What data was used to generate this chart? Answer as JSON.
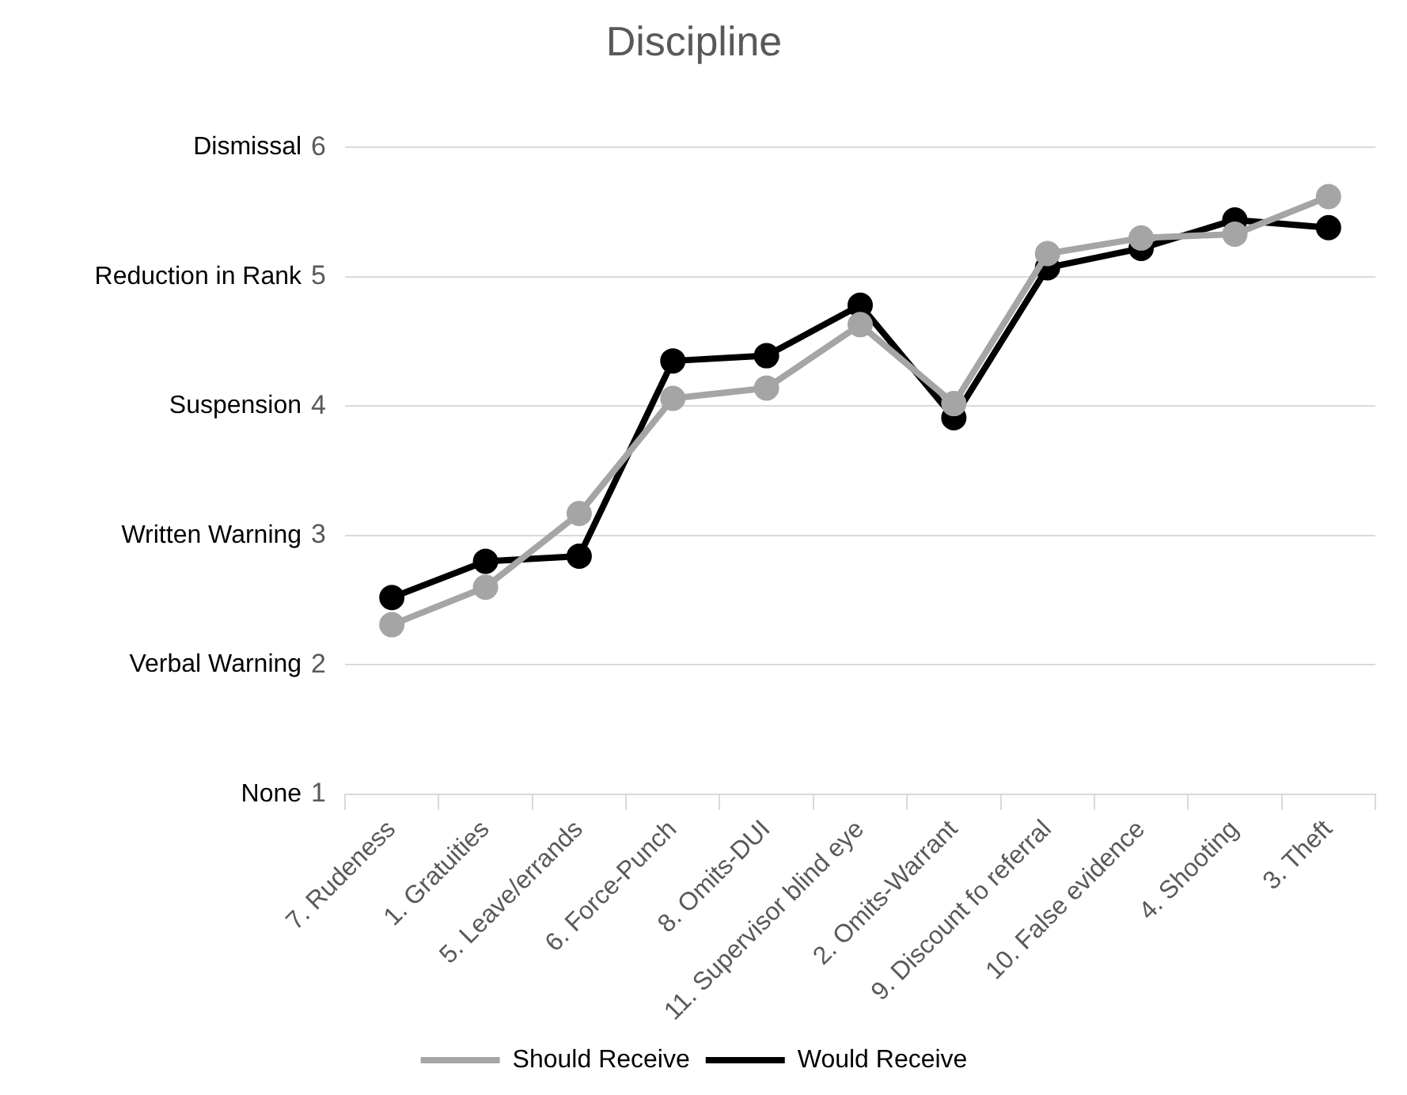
{
  "chart_data": {
    "type": "line",
    "title": "Discipline",
    "categories": [
      "7. Rudeness",
      "1. Gratuities",
      "5. Leave/errands",
      "6. Force-Punch",
      "8. Omits-DUI",
      "11. Supervisor blind eye",
      "2. Omits-Warrant",
      "9. Discount fo referral",
      "10. False evidence",
      "4. Shooting",
      "3. Theft"
    ],
    "series": [
      {
        "name": "Should Receive",
        "color": "#a5a5a5",
        "values": [
          2.31,
          2.6,
          3.17,
          4.06,
          4.14,
          4.63,
          4.02,
          5.18,
          5.3,
          5.33,
          5.62
        ]
      },
      {
        "name": "Would Receive",
        "color": "#000000",
        "values": [
          2.52,
          2.8,
          2.84,
          4.35,
          4.39,
          4.78,
          3.91,
          5.07,
          5.22,
          5.44,
          5.38
        ]
      }
    ],
    "ylim": [
      1,
      6
    ],
    "yticks": [
      1,
      2,
      3,
      4,
      5,
      6
    ],
    "annotations": [
      "None",
      "Verbal Warning",
      "Written Warning",
      "Suspension",
      "Reduction in Rank",
      "Dismissal"
    ],
    "grid": "y",
    "legend": "bottom",
    "marker": "circle",
    "line_style": "solid"
  }
}
